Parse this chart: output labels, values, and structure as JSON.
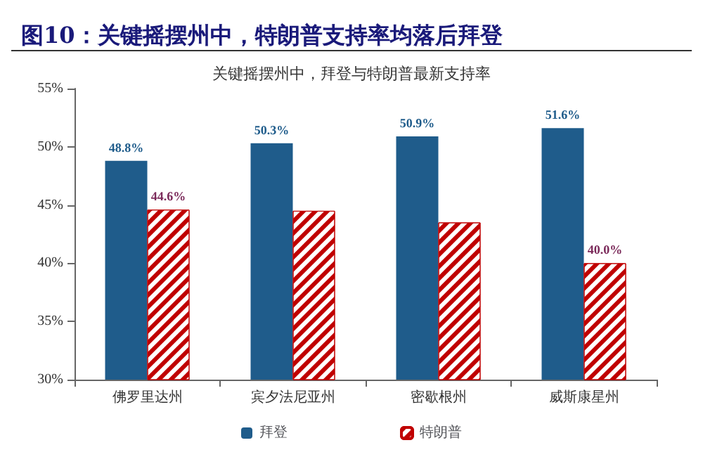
{
  "chart_data": {
    "type": "bar",
    "title": "图10：关键摇摆州中，特朗普支持率均落后拜登",
    "subtitle": "关键摇摆州中，拜登与特朗普最新支持率",
    "categories": [
      "佛罗里达州",
      "宾夕法尼亚州",
      "密歇根州",
      "威斯康星州"
    ],
    "series": [
      {
        "name": "拜登",
        "color": "#1f5c8b",
        "values": [
          48.8,
          50.3,
          50.9,
          51.6
        ],
        "value_labels": [
          "48.8%",
          "50.3%",
          "50.9%",
          "51.6%"
        ]
      },
      {
        "name": "特朗普",
        "color": "#c00000",
        "values": [
          44.6,
          44.5,
          43.5,
          40.0
        ],
        "value_labels": [
          "44.6%",
          null,
          null,
          "40.0%"
        ]
      }
    ],
    "ylim": [
      30,
      55
    ],
    "yticks": [
      {
        "value": 30,
        "label": "30%"
      },
      {
        "value": 35,
        "label": "35%"
      },
      {
        "value": 40,
        "label": "40%"
      },
      {
        "value": 45,
        "label": "45%"
      },
      {
        "value": 50,
        "label": "50%"
      },
      {
        "value": 55,
        "label": "55%"
      }
    ],
    "grid": false,
    "legend": "bottom"
  }
}
